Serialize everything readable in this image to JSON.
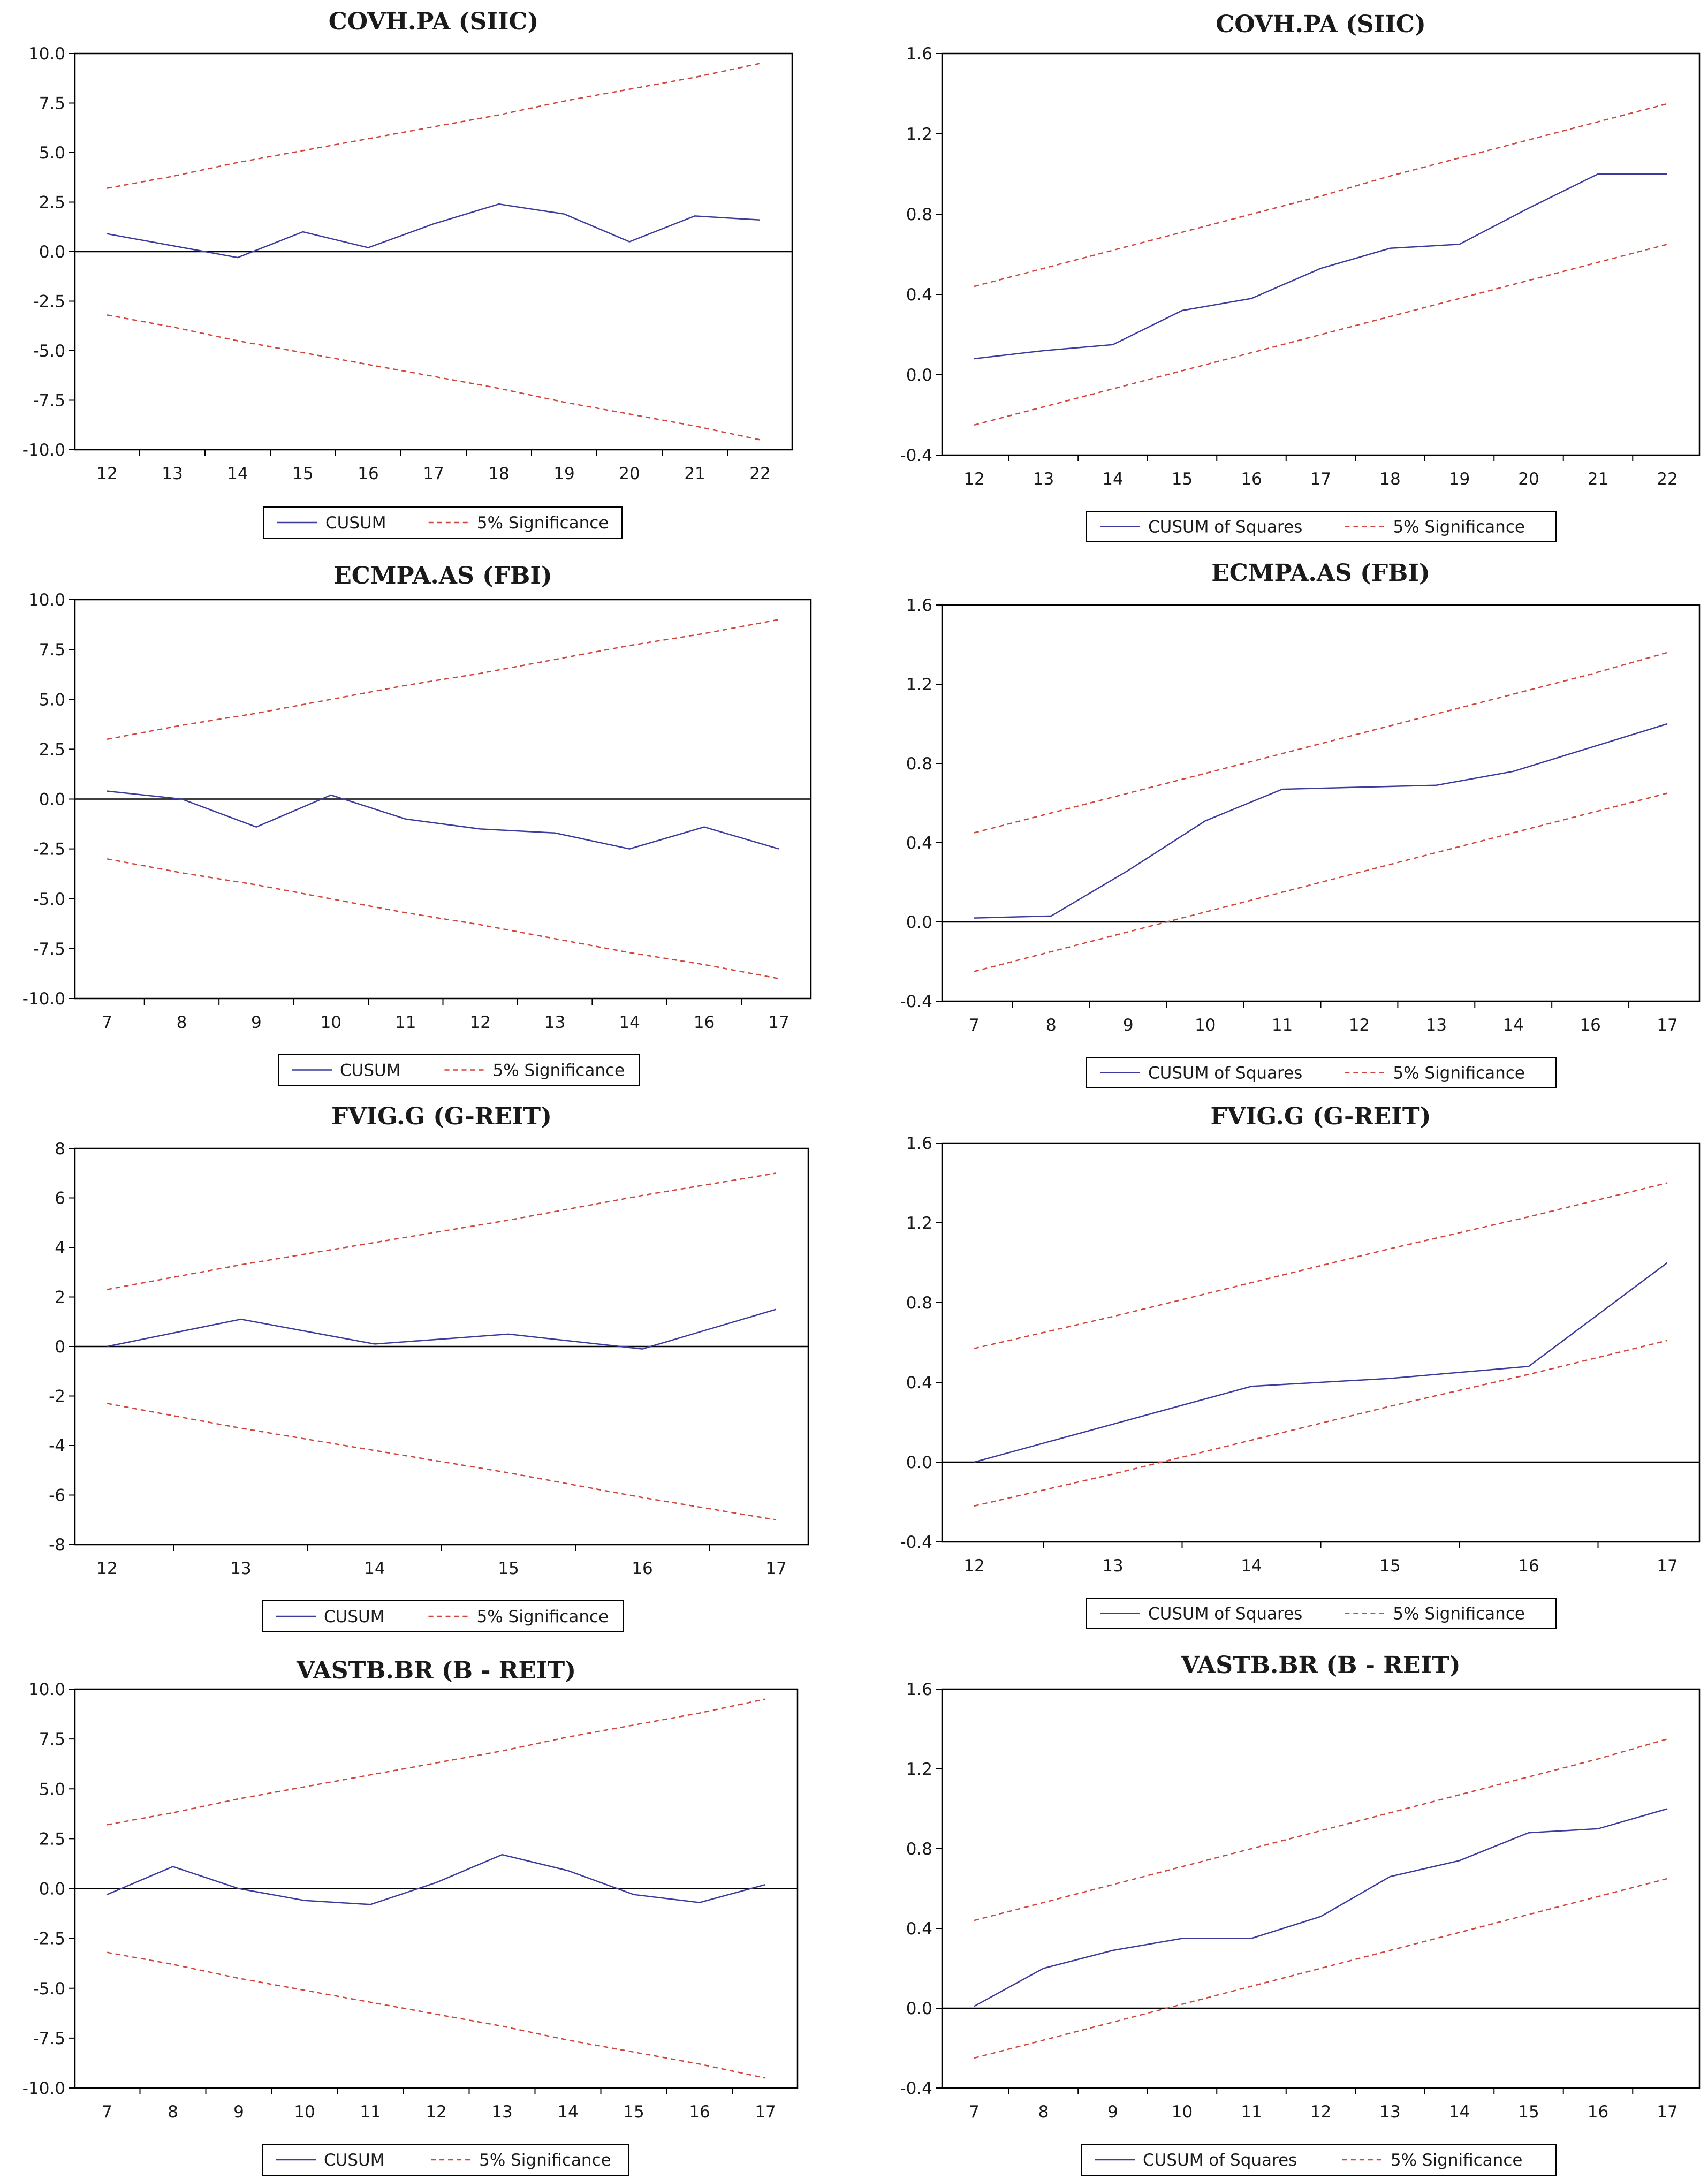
{
  "colors": {
    "series": "#3b3b9e",
    "bounds": "#d0443c",
    "axis": "#000000",
    "frame": "#000000"
  },
  "chart_data": [
    {
      "type": "line",
      "position": "row1-left",
      "title": "COVH.PA (SIIC)",
      "categories": [
        "12",
        "13",
        "14",
        "15",
        "16",
        "17",
        "18",
        "19",
        "20",
        "21",
        "22"
      ],
      "ylim": [
        -10,
        10
      ],
      "yticks": [
        10,
        7.5,
        5,
        2.5,
        0,
        -2.5,
        -5,
        -7.5,
        -10
      ],
      "ytick_labels": [
        "10.0",
        "7.5",
        "5.0",
        "2.5",
        "0.0",
        "-2.5",
        "-5.0",
        "-7.5",
        "-10.0"
      ],
      "series": [
        {
          "name": "CUSUM",
          "values": [
            0.9,
            0.3,
            -0.3,
            1.0,
            0.2,
            1.4,
            2.4,
            1.9,
            0.5,
            1.8,
            1.6
          ]
        },
        {
          "name": "5% Significance",
          "style": "dashed",
          "values": [
            3.2,
            3.8,
            4.5,
            5.1,
            5.7,
            6.3,
            6.9,
            7.6,
            8.2,
            8.8,
            9.5
          ]
        },
        {
          "name": "5% Significance (lower)",
          "style": "dashed",
          "values": [
            -3.2,
            -3.8,
            -4.5,
            -5.1,
            -5.7,
            -6.3,
            -6.9,
            -7.6,
            -8.2,
            -8.8,
            -9.5
          ]
        }
      ],
      "zero_line": true,
      "legend": [
        "CUSUM",
        "5% Significance"
      ]
    },
    {
      "type": "line",
      "position": "row1-right",
      "title": "COVH.PA (SIIC)",
      "categories": [
        "12",
        "13",
        "14",
        "15",
        "16",
        "17",
        "18",
        "19",
        "20",
        "21",
        "22"
      ],
      "ylim": [
        -0.4,
        1.6
      ],
      "yticks": [
        1.6,
        1.2,
        0.8,
        0.4,
        0,
        -0.4
      ],
      "ytick_labels": [
        "1.6",
        "1.2",
        "0.8",
        "0.4",
        "0.0",
        "-0.4"
      ],
      "series": [
        {
          "name": "CUSUM of Squares",
          "values": [
            0.08,
            0.12,
            0.15,
            0.32,
            0.38,
            0.53,
            0.63,
            0.65,
            0.83,
            1.0,
            1.0
          ]
        },
        {
          "name": "5% Significance",
          "style": "dashed",
          "values": [
            0.44,
            0.53,
            0.62,
            0.71,
            0.8,
            0.89,
            0.99,
            1.08,
            1.17,
            1.26,
            1.35
          ]
        },
        {
          "name": "5% Significance (lower)",
          "style": "dashed",
          "values": [
            -0.25,
            -0.16,
            -0.07,
            0.02,
            0.11,
            0.2,
            0.29,
            0.38,
            0.47,
            0.56,
            0.65
          ]
        }
      ],
      "zero_line": false,
      "legend": [
        "CUSUM of Squares",
        "5% Significance"
      ]
    },
    {
      "type": "line",
      "position": "row2-left",
      "title": "ECMPA.AS (FBI)",
      "categories": [
        "7",
        "8",
        "9",
        "10",
        "11",
        "12",
        "13",
        "14",
        "16",
        "17"
      ],
      "ylim": [
        -10,
        10
      ],
      "yticks": [
        10,
        7.5,
        5,
        2.5,
        0,
        -2.5,
        -5,
        -7.5,
        -10
      ],
      "ytick_labels": [
        "10.0",
        "7.5",
        "5.0",
        "2.5",
        "0.0",
        "-2.5",
        "-5.0",
        "-7.5",
        "-10.0"
      ],
      "series": [
        {
          "name": "CUSUM",
          "values": [
            0.4,
            0.0,
            -1.4,
            0.2,
            -1.0,
            -1.5,
            -1.7,
            -2.5,
            -1.4,
            -2.5
          ]
        },
        {
          "name": "5% Significance",
          "style": "dashed",
          "values": [
            3.0,
            3.7,
            4.3,
            5.0,
            5.7,
            6.3,
            7.0,
            7.7,
            8.3,
            9.0
          ]
        },
        {
          "name": "5% Significance (lower)",
          "style": "dashed",
          "values": [
            -3.0,
            -3.7,
            -4.3,
            -5.0,
            -5.7,
            -6.3,
            -7.0,
            -7.7,
            -8.3,
            -9.0
          ]
        }
      ],
      "zero_line": true,
      "legend": [
        "CUSUM",
        "5% Significance"
      ]
    },
    {
      "type": "line",
      "position": "row2-right",
      "title": "ECMPA.AS (FBI)",
      "categories": [
        "7",
        "8",
        "9",
        "10",
        "11",
        "12",
        "13",
        "14",
        "16",
        "17"
      ],
      "ylim": [
        -0.4,
        1.6
      ],
      "yticks": [
        1.6,
        1.2,
        0.8,
        0.4,
        0,
        -0.4
      ],
      "ytick_labels": [
        "1.6",
        "1.2",
        "0.8",
        "0.4",
        "0.0",
        "-0.4"
      ],
      "series": [
        {
          "name": "CUSUM of Squares",
          "values": [
            0.02,
            0.03,
            0.26,
            0.51,
            0.67,
            0.68,
            0.69,
            0.76,
            0.88,
            1.0
          ]
        },
        {
          "name": "5% Significance",
          "style": "dashed",
          "values": [
            0.45,
            0.55,
            0.65,
            0.75,
            0.85,
            0.95,
            1.05,
            1.15,
            1.25,
            1.36
          ]
        },
        {
          "name": "5% Significance (lower)",
          "style": "dashed",
          "values": [
            -0.25,
            -0.15,
            -0.05,
            0.05,
            0.15,
            0.25,
            0.35,
            0.45,
            0.55,
            0.65
          ]
        }
      ],
      "zero_line": true,
      "legend": [
        "CUSUM of Squares",
        "5% Significance"
      ]
    },
    {
      "type": "line",
      "position": "row3-left",
      "title": "FVIG.G (G-REIT)",
      "categories": [
        "12",
        "13",
        "14",
        "15",
        "16",
        "17"
      ],
      "ylim": [
        -8,
        8
      ],
      "yticks": [
        8,
        6,
        4,
        2,
        0,
        -2,
        -4,
        -6,
        -8
      ],
      "ytick_labels": [
        "8",
        "6",
        "4",
        "2",
        "0",
        "-2",
        "-4",
        "-6",
        "-8"
      ],
      "series": [
        {
          "name": "CUSUM",
          "values": [
            0.0,
            1.1,
            0.1,
            0.5,
            -0.1,
            1.5
          ]
        },
        {
          "name": "5% Significance",
          "style": "dashed",
          "values": [
            2.3,
            3.3,
            4.2,
            5.1,
            6.1,
            7.0
          ]
        },
        {
          "name": "5% Significance (lower)",
          "style": "dashed",
          "values": [
            -2.3,
            -3.3,
            -4.2,
            -5.1,
            -6.1,
            -7.0
          ]
        }
      ],
      "zero_line": true,
      "legend": [
        "CUSUM",
        "5% Significance"
      ]
    },
    {
      "type": "line",
      "position": "row3-right",
      "title": "FVIG.G (G-REIT)",
      "categories": [
        "12",
        "13",
        "14",
        "15",
        "16",
        "17"
      ],
      "ylim": [
        -0.4,
        1.6
      ],
      "yticks": [
        1.6,
        1.2,
        0.8,
        0.4,
        0,
        -0.4
      ],
      "ytick_labels": [
        "1.6",
        "1.2",
        "0.8",
        "0.4",
        "0.0",
        "-0.4"
      ],
      "series": [
        {
          "name": "CUSUM of Squares",
          "values": [
            0.0,
            0.19,
            0.38,
            0.42,
            0.48,
            1.0
          ]
        },
        {
          "name": "5% Significance",
          "style": "dashed",
          "values": [
            0.57,
            0.73,
            0.9,
            1.07,
            1.23,
            1.4
          ]
        },
        {
          "name": "5% Significance (lower)",
          "style": "dashed",
          "values": [
            -0.22,
            -0.06,
            0.11,
            0.28,
            0.44,
            0.61
          ]
        }
      ],
      "zero_line": true,
      "legend": [
        "CUSUM of Squares",
        "5% Significance"
      ]
    },
    {
      "type": "line",
      "position": "row4-left",
      "title": "VASTB.BR (B - REIT)",
      "categories": [
        "7",
        "8",
        "9",
        "10",
        "11",
        "12",
        "13",
        "14",
        "15",
        "16",
        "17"
      ],
      "ylim": [
        -10,
        10
      ],
      "yticks": [
        10,
        7.5,
        5,
        2.5,
        0,
        -2.5,
        -5,
        -7.5,
        -10
      ],
      "ytick_labels": [
        "10.0",
        "7.5",
        "5.0",
        "2.5",
        "0.0",
        "-2.5",
        "-5.0",
        "-7.5",
        "-10.0"
      ],
      "series": [
        {
          "name": "CUSUM",
          "values": [
            -0.3,
            1.1,
            0.0,
            -0.6,
            -0.8,
            0.3,
            1.7,
            0.9,
            -0.3,
            -0.7,
            0.2
          ]
        },
        {
          "name": "5% Significance",
          "style": "dashed",
          "values": [
            3.2,
            3.8,
            4.5,
            5.1,
            5.7,
            6.3,
            6.9,
            7.6,
            8.2,
            8.8,
            9.5
          ]
        },
        {
          "name": "5% Significance (lower)",
          "style": "dashed",
          "values": [
            -3.2,
            -3.8,
            -4.5,
            -5.1,
            -5.7,
            -6.3,
            -6.9,
            -7.6,
            -8.2,
            -8.8,
            -9.5
          ]
        }
      ],
      "zero_line": true,
      "legend": [
        "CUSUM",
        "5% Significance"
      ]
    },
    {
      "type": "line",
      "position": "row4-right",
      "title": "VASTB.BR (B - REIT)",
      "categories": [
        "7",
        "8",
        "9",
        "10",
        "11",
        "12",
        "13",
        "14",
        "15",
        "16",
        "17"
      ],
      "ylim": [
        -0.4,
        1.6
      ],
      "yticks": [
        1.6,
        1.2,
        0.8,
        0.4,
        0,
        -0.4
      ],
      "ytick_labels": [
        "1.6",
        "1.2",
        "0.8",
        "0.4",
        "0.0",
        "-0.4"
      ],
      "series": [
        {
          "name": "CUSUM of Squares",
          "values": [
            0.01,
            0.2,
            0.29,
            0.35,
            0.35,
            0.46,
            0.66,
            0.74,
            0.88,
            0.9,
            1.0
          ]
        },
        {
          "name": "5% Significance",
          "style": "dashed",
          "values": [
            0.44,
            0.53,
            0.62,
            0.71,
            0.8,
            0.89,
            0.98,
            1.07,
            1.16,
            1.25,
            1.35
          ]
        },
        {
          "name": "5% Significance (lower)",
          "style": "dashed",
          "values": [
            -0.25,
            -0.16,
            -0.07,
            0.02,
            0.11,
            0.2,
            0.29,
            0.38,
            0.47,
            0.56,
            0.65
          ]
        }
      ],
      "zero_line": true,
      "legend": [
        "CUSUM of Squares",
        "5% Significance"
      ]
    }
  ]
}
